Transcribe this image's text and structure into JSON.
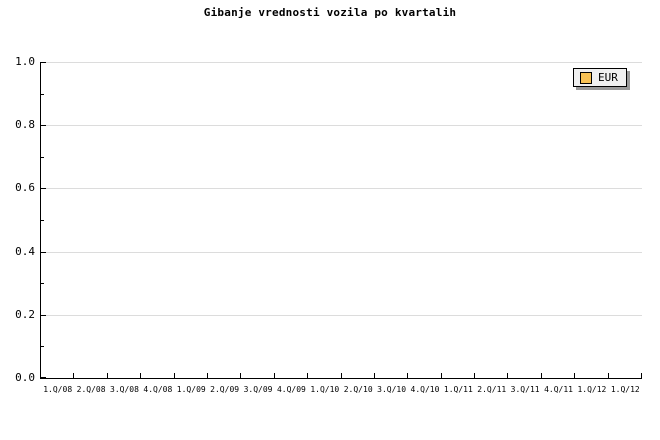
{
  "title": "Gibanje vrednosti vozila po kvartalih",
  "legend": {
    "label": "EUR"
  },
  "axes": {
    "y": {
      "tick_labels": [
        "1.0",
        "0.8",
        "0.6",
        "0.4",
        "0.2",
        "0.0"
      ],
      "minor_ticks": [
        0.9,
        0.7,
        0.5,
        0.3,
        0.1
      ]
    },
    "x": {
      "tick_labels": [
        "1.Q/08",
        "2.Q/08",
        "3.Q/08",
        "4.Q/08",
        "1.Q/09",
        "2.Q/09",
        "3.Q/09",
        "4.Q/09",
        "1.Q/10",
        "2.Q/10",
        "3.Q/10",
        "4.Q/10",
        "1.Q/11",
        "2.Q/11",
        "3.Q/11",
        "4.Q/11",
        "1.Q/12",
        "1.Q/12"
      ]
    }
  },
  "chart_data": {
    "type": "line",
    "title": "Gibanje vrednosti vozila po kvartalih",
    "categories": [
      "1.Q/08",
      "2.Q/08",
      "3.Q/08",
      "4.Q/08",
      "1.Q/09",
      "2.Q/09",
      "3.Q/09",
      "4.Q/09",
      "1.Q/10",
      "2.Q/10",
      "3.Q/10",
      "4.Q/10",
      "1.Q/11",
      "2.Q/11",
      "3.Q/11",
      "4.Q/11",
      "1.Q/12",
      "1.Q/12"
    ],
    "series": [
      {
        "name": "EUR",
        "values": []
      }
    ],
    "xlabel": "",
    "ylabel": "",
    "ylim": [
      0.0,
      1.0
    ],
    "yticks": [
      0.0,
      0.2,
      0.4,
      0.6,
      0.8,
      1.0
    ],
    "yticks_minor": [
      0.1,
      0.3,
      0.5,
      0.7,
      0.9
    ],
    "grid": true,
    "legend_position": "top-right"
  },
  "colors": {
    "background": "#FFFFFF",
    "axis": "#000000",
    "gridline": "#DCDCDC",
    "text": "#000000",
    "legend_bg": "#F0F0F0",
    "legend_border": "#000000",
    "legend_shadow": "#999999",
    "series_eur": "#F8C255"
  }
}
